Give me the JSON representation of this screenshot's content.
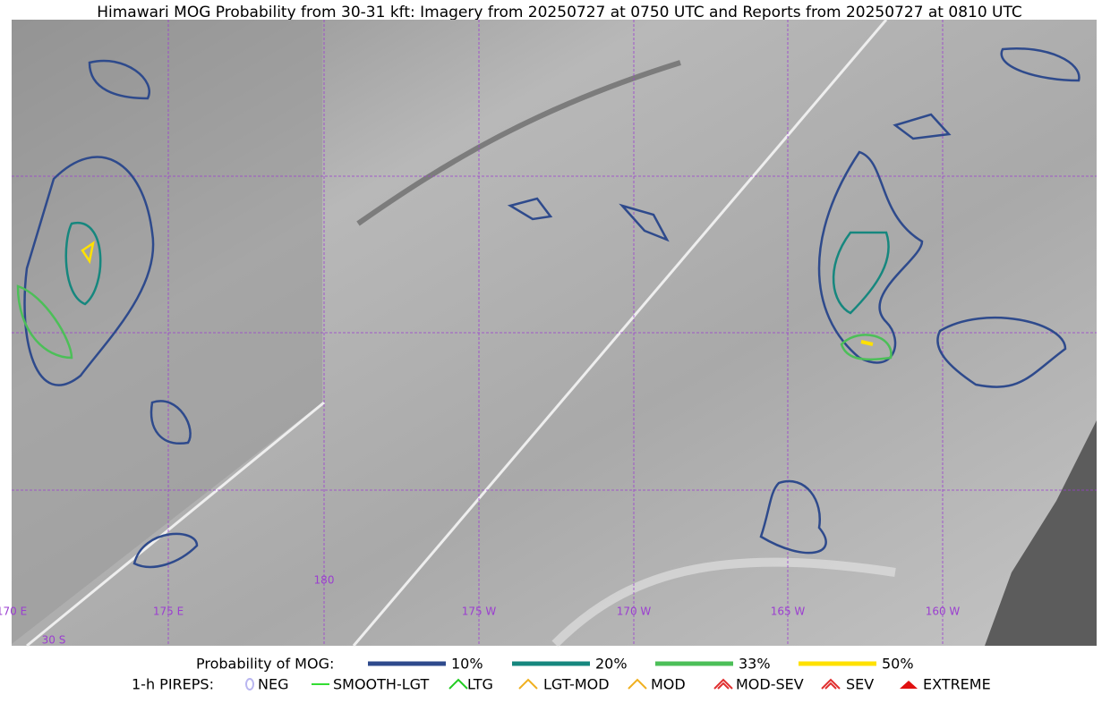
{
  "header": {
    "title": "Himawari MOG Probability from 30-31 kft: Imagery from 20250727 at 0750 UTC and Reports from 20250727 at 0810 UTC"
  },
  "map": {
    "longitude_labels": [
      "170 E",
      "175 E",
      "180",
      "175 W",
      "170 W",
      "165 W",
      "160 W"
    ],
    "latitude_labels": [
      "30 S"
    ]
  },
  "legend": {
    "probability": {
      "title": "Probability of MOG:",
      "items": [
        {
          "label": "10%",
          "color": "#2e4a8c"
        },
        {
          "label": "20%",
          "color": "#16877e"
        },
        {
          "label": "33%",
          "color": "#4cbf58"
        },
        {
          "label": "50%",
          "color": "#ffe100"
        }
      ]
    },
    "pireps": {
      "title": "1-h PIREPS:",
      "items": [
        {
          "label": "NEG",
          "color": "#b9b6f0"
        },
        {
          "label": "SMOOTH-LGT",
          "color": "#33dd33"
        },
        {
          "label": "LTG",
          "color": "#22cc22"
        },
        {
          "label": "LGT-MOD",
          "color": "#f0b020"
        },
        {
          "label": "MOD",
          "color": "#f0b020"
        },
        {
          "label": "MOD-SEV",
          "color": "#e03030"
        },
        {
          "label": "SEV",
          "color": "#e03030"
        },
        {
          "label": "EXTREME",
          "color": "#e01010"
        }
      ]
    }
  }
}
